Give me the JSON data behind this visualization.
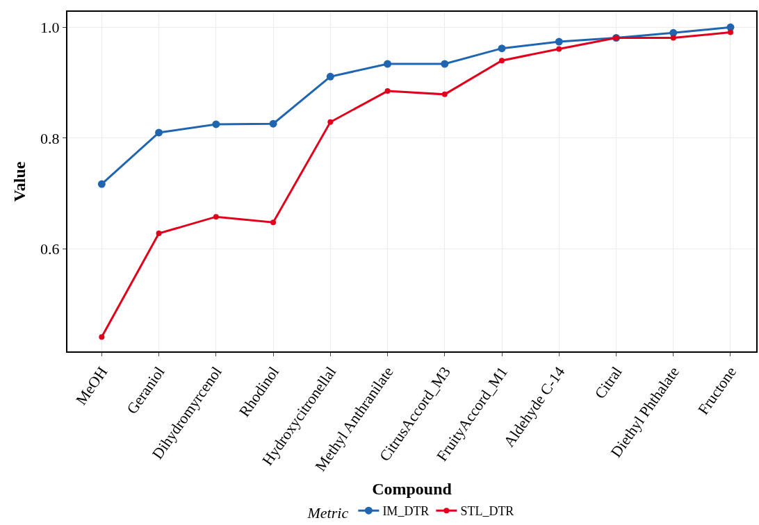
{
  "chart_data": {
    "type": "line",
    "xlabel": "Compound",
    "ylabel": "Value",
    "legend_title": "Metric",
    "categories": [
      "MeOH",
      "Geraniol",
      "Dihydromyrcenol",
      "Rhodinol",
      "Hydroxycitronellal",
      "Methyl Anthranilate",
      "CitrusAccord_M3",
      "FruityAccord_M1",
      "Aldehyde C-14",
      "Citral",
      "Diethyl Phthalate",
      "Fructone"
    ],
    "series": [
      {
        "name": "IM_DTR",
        "color": "#1f65b0",
        "values": [
          0.717,
          0.81,
          0.825,
          0.826,
          0.911,
          0.934,
          0.934,
          0.962,
          0.974,
          0.981,
          0.99,
          1.0
        ]
      },
      {
        "name": "STL_DTR",
        "color": "#e0001b",
        "values": [
          0.441,
          0.628,
          0.658,
          0.648,
          0.829,
          0.885,
          0.879,
          0.94,
          0.961,
          0.981,
          0.981,
          0.991
        ]
      }
    ],
    "ylim": [
      0.415,
      1.028
    ],
    "yticks": [
      {
        "value": 0.6,
        "label": "0.6"
      },
      {
        "value": 0.8,
        "label": "0.8"
      },
      {
        "value": 1.0,
        "label": "1.0"
      }
    ],
    "grid": true,
    "legend": "bottom",
    "marker": "circle",
    "line_style": "solid"
  }
}
